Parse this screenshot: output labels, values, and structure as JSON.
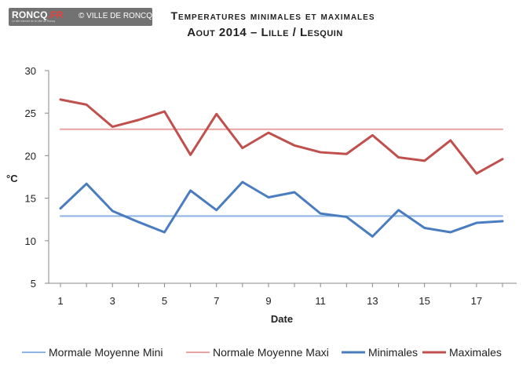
{
  "watermark": {
    "logo_main": "RONCQ",
    "logo_accent": ".FR",
    "tagline": "Le site internet de la Ville de Roncq",
    "copyright": "© VILLE DE RONCQ"
  },
  "chart_data": {
    "type": "line",
    "title": "Temperatures minimales et maximales",
    "subtitle": "Aout 2014 – Lille / Lesquin",
    "xlabel": "Date",
    "ylabel": "°C",
    "x": [
      1,
      2,
      3,
      4,
      5,
      6,
      7,
      8,
      9,
      10,
      11,
      12,
      13,
      14,
      15,
      16,
      17,
      18
    ],
    "xticks": [
      "1",
      "3",
      "5",
      "7",
      "9",
      "11",
      "13",
      "15",
      "17"
    ],
    "yticks": [
      "5",
      "10",
      "15",
      "20",
      "25",
      "30"
    ],
    "ylim": [
      5,
      30
    ],
    "xlim": [
      1,
      18
    ],
    "grid": false,
    "legend_position": "bottom",
    "series": [
      {
        "name": "Mormale Moyenne Mini",
        "color": "#8eb4e3",
        "width": 2,
        "values": [
          12.9,
          12.9,
          12.9,
          12.9,
          12.9,
          12.9,
          12.9,
          12.9,
          12.9,
          12.9,
          12.9,
          12.9,
          12.9,
          12.9,
          12.9,
          12.9,
          12.9,
          12.9
        ]
      },
      {
        "name": "Normale Moyenne Maxi",
        "color": "#e6a3a2",
        "width": 2,
        "values": [
          23.1,
          23.1,
          23.1,
          23.1,
          23.1,
          23.1,
          23.1,
          23.1,
          23.1,
          23.1,
          23.1,
          23.1,
          23.1,
          23.1,
          23.1,
          23.1,
          23.1,
          23.1
        ]
      },
      {
        "name": "Minimales",
        "color": "#4a7dbf",
        "width": 3,
        "values": [
          13.8,
          16.7,
          13.5,
          12.2,
          11.0,
          15.9,
          13.6,
          16.9,
          15.1,
          15.7,
          13.2,
          12.8,
          10.5,
          13.6,
          11.5,
          11.0,
          12.1,
          12.3
        ]
      },
      {
        "name": "Maximales",
        "color": "#c0504d",
        "width": 3,
        "values": [
          26.6,
          26.0,
          23.4,
          24.2,
          25.2,
          20.1,
          24.9,
          20.9,
          22.7,
          21.2,
          20.4,
          20.2,
          22.4,
          19.8,
          19.4,
          21.8,
          17.9,
          19.6
        ]
      }
    ]
  }
}
